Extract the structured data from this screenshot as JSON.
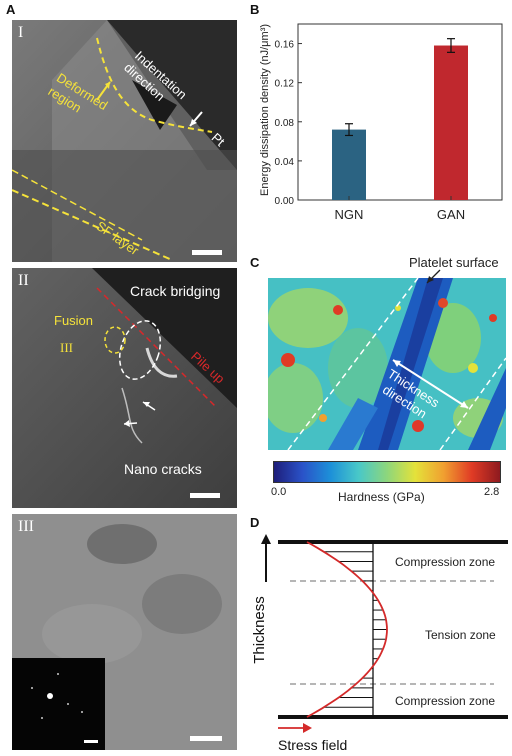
{
  "panels": {
    "a": "A",
    "b": "B",
    "c": "C",
    "d": "D"
  },
  "micrographs": {
    "one": {
      "numeral": "I",
      "labels": {
        "indentation": "Indentation\ndirection",
        "deformed": "Deformed\nregion",
        "pt": "Pt",
        "sf": "SF layer"
      }
    },
    "two": {
      "numeral": "II",
      "labels": {
        "crack_bridging": "Crack bridging",
        "fusion": "Fusion",
        "marker": "III",
        "pileup": "Pile up",
        "nano_cracks": "Nano cracks"
      }
    },
    "three": {
      "numeral": "III"
    }
  },
  "chart_data": {
    "type": "bar",
    "categories": [
      "NGN",
      "GAN"
    ],
    "values": [
      0.072,
      0.158
    ],
    "errors": [
      0.006,
      0.007
    ],
    "colors": [
      "#2b6382",
      "#c0282e"
    ],
    "ylabel": "Energy dissipation density (nJ/μm³)",
    "ylim": [
      0,
      0.18
    ],
    "yticks": [
      "0.00",
      "0.04",
      "0.08",
      "0.12",
      "0.16"
    ]
  },
  "hardness_map": {
    "top_label": "Platelet surface",
    "direction_label": "Thickness\ndirection",
    "colorbar_label": "Hardness (GPa)",
    "colorbar_min": "0.0",
    "colorbar_max": "2.8",
    "colorbar_colors": [
      "#1e1e7a",
      "#2a52c8",
      "#1d90d8",
      "#49c8c8",
      "#8dd67c",
      "#e4e23a",
      "#f0a030",
      "#e03b25",
      "#8e1a1f"
    ]
  },
  "stress": {
    "thickness_label": "Thickness",
    "compression_top": "Compression zone",
    "tension": "Tension zone",
    "compression_bottom": "Compression zone",
    "stress_field": "Stress field",
    "colors": {
      "curve": "#d42a2a",
      "line": "#111111",
      "dash": "#8a8a8a"
    }
  }
}
